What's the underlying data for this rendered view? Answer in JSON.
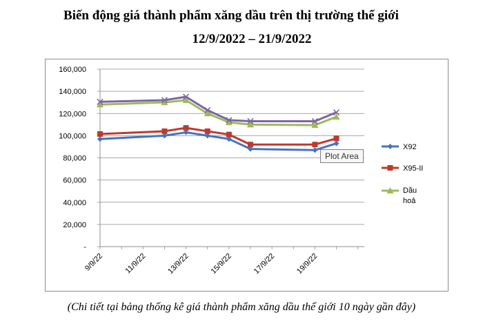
{
  "chart_data": {
    "type": "line",
    "title": "Biến động giá thành phẩm xăng dầu trên thị trường thế giới",
    "subtitle": "12/9/2022 – 21/9/2022",
    "xlabel": "",
    "ylabel": "",
    "x": [
      "9/9/22",
      "12/9/22",
      "13/9/22",
      "14/9/22",
      "15/9/22",
      "16/9/22",
      "19/9/22",
      "20/9/22"
    ],
    "x_day_offsets": [
      0,
      3,
      4,
      5,
      6,
      7,
      10,
      11
    ],
    "x_tick_labels": [
      "9/9/22",
      "11/9/22",
      "13/9/22",
      "15/9/22",
      "17/9/22",
      "19/9/22"
    ],
    "x_tick_offsets": [
      0,
      2,
      4,
      6,
      8,
      10
    ],
    "y_tick_labels": [
      "160,000",
      "140,000",
      "120,000",
      "100,000",
      "80,000",
      "60,000",
      "40,000",
      "20,000",
      "-"
    ],
    "ylim": [
      0,
      160000
    ],
    "grid": "horizontal",
    "legend_position": "right",
    "series": [
      {
        "name": "X92",
        "color": "#4472c4",
        "marker": "diamond",
        "values": [
          97000,
          100000,
          103000,
          100000,
          97000,
          88000,
          87000,
          93000
        ]
      },
      {
        "name": "X95-II",
        "color": "#c0392b",
        "marker": "square",
        "values": [
          101500,
          104000,
          107000,
          104000,
          101000,
          92000,
          92000,
          97500
        ]
      },
      {
        "name": "Dầu hoả",
        "color": "#9bbb59",
        "marker": "triangle",
        "values": [
          128000,
          130000,
          132000,
          120000,
          112000,
          110000,
          109500,
          117000
        ]
      },
      {
        "name": "",
        "color": "#8064a2",
        "marker": "x",
        "values": [
          130500,
          132000,
          135000,
          123000,
          114000,
          113000,
          113000,
          121000
        ]
      }
    ],
    "tooltip": "Plot Area"
  },
  "footnote": "(Chi tiết tại bảng thống kê giá thành phẩm xăng dầu thế giới 10 ngày gần đây)"
}
